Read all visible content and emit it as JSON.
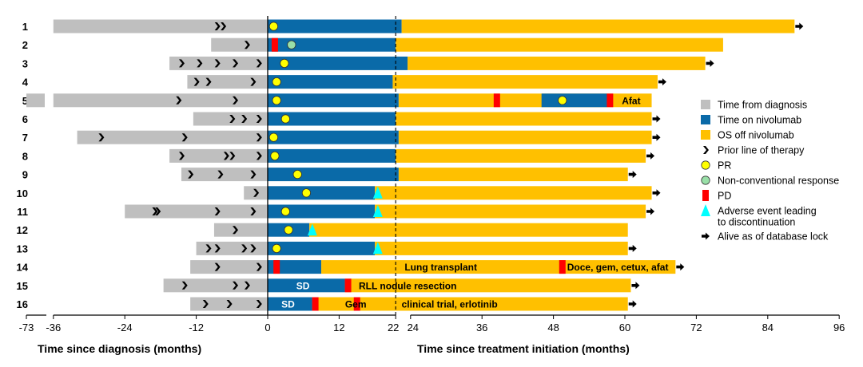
{
  "chart_data": {
    "type": "swimmer",
    "title": "",
    "xlabel_left": "Time since diagnosis (months)",
    "xlabel_right": "Time since treatment initiation (months)",
    "left_ticks": [
      "-73",
      "-36",
      "-24",
      "-12",
      "0"
    ],
    "right_ticks": [
      "12",
      "22",
      "24",
      "36",
      "48",
      "60",
      "72",
      "84",
      "96"
    ],
    "x_range_months": [
      -36,
      96
    ],
    "x_break": "-73 to -36 axis break",
    "reference_line_month": 21.5,
    "colors": {
      "diagnosis": "#bfbfbf",
      "nivolumab": "#0a6aa8",
      "os_off": "#ffc000",
      "pd": "#ff0000",
      "pr": "#ffff00",
      "nonconv": "#99e0a8",
      "ae": "#00ffff",
      "alive": "#000000"
    },
    "patients": [
      {
        "id": "1",
        "diag_start": -36,
        "broken": false,
        "prior_lines": [
          -8.5,
          -7.5
        ],
        "niv_end": 22.5,
        "os_end": 88.5,
        "alive": true,
        "pr": [
          1
        ],
        "nc": [],
        "pd": [],
        "ae": [],
        "labels": []
      },
      {
        "id": "2",
        "diag_start": -9.5,
        "broken": false,
        "prior_lines": [
          -3.5
        ],
        "niv_end": 21.5,
        "os_end": 76.5,
        "alive": false,
        "pr": [],
        "nc": [
          4
        ],
        "pd": [
          1.2
        ],
        "ae": [],
        "labels": []
      },
      {
        "id": "3",
        "diag_start": -16.5,
        "broken": false,
        "prior_lines": [
          -14.5,
          -11.5,
          -8.5,
          -5.5,
          -1.5
        ],
        "niv_end": 23.5,
        "os_end": 73.5,
        "alive": true,
        "pr": [
          2.8
        ],
        "nc": [],
        "pd": [],
        "ae": [],
        "labels": []
      },
      {
        "id": "4",
        "diag_start": -13.5,
        "broken": false,
        "prior_lines": [
          -12,
          -10,
          -2.5
        ],
        "niv_end": 21,
        "os_end": 65.5,
        "alive": true,
        "pr": [
          1.5
        ],
        "nc": [],
        "pd": [],
        "ae": [],
        "labels": []
      },
      {
        "id": "5",
        "diag_start": -36,
        "broken": true,
        "prior_lines": [
          -15,
          -5.5
        ],
        "niv_end": 22,
        "os_end": 64.5,
        "alive": false,
        "pr": [
          1.5,
          49.5
        ],
        "nc": [],
        "pd": [
          38.5,
          57.5
        ],
        "ae": [],
        "blue_segments": [
          [
            46,
            57
          ]
        ],
        "labels": [
          {
            "text": "Afat",
            "x": 59.5,
            "color": "dark"
          }
        ]
      },
      {
        "id": "6",
        "diag_start": -12.5,
        "broken": false,
        "prior_lines": [
          -6,
          -4,
          -1.5
        ],
        "niv_end": 21.5,
        "os_end": 64.5,
        "alive": true,
        "pr": [
          3
        ],
        "nc": [],
        "pd": [],
        "ae": [],
        "labels": []
      },
      {
        "id": "7",
        "diag_start": -32,
        "broken": false,
        "prior_lines": [
          -28,
          -14,
          -1.5
        ],
        "niv_end": 22,
        "os_end": 64.5,
        "alive": true,
        "pr": [
          1
        ],
        "nc": [],
        "pd": [],
        "ae": [],
        "labels": []
      },
      {
        "id": "8",
        "diag_start": -16.5,
        "broken": false,
        "prior_lines": [
          -14.5,
          -7,
          -6,
          -1.5
        ],
        "niv_end": 21.5,
        "os_end": 63.5,
        "alive": true,
        "pr": [
          1.2
        ],
        "nc": [],
        "pd": [],
        "ae": [],
        "labels": []
      },
      {
        "id": "9",
        "diag_start": -14.5,
        "broken": false,
        "prior_lines": [
          -13,
          -8,
          -2.5
        ],
        "niv_end": 22,
        "os_end": 60.5,
        "alive": true,
        "pr": [
          5
        ],
        "nc": [],
        "pd": [],
        "ae": [],
        "labels": []
      },
      {
        "id": "10",
        "diag_start": -4,
        "broken": false,
        "prior_lines": [
          -2
        ],
        "niv_end": 18,
        "os_end": 64.5,
        "alive": true,
        "pr": [
          6.5
        ],
        "nc": [],
        "pd": [],
        "ae": [
          18.5
        ],
        "labels": []
      },
      {
        "id": "11",
        "diag_start": -24,
        "broken": false,
        "prior_lines": [
          -19,
          -18.5,
          -8.5,
          -2.5
        ],
        "niv_end": 18,
        "os_end": 63.5,
        "alive": true,
        "pr": [
          3
        ],
        "nc": [],
        "pd": [],
        "ae": [
          18.5
        ],
        "labels": []
      },
      {
        "id": "12",
        "diag_start": -9,
        "broken": false,
        "prior_lines": [
          -5.5
        ],
        "niv_end": 7,
        "os_end": 60.5,
        "alive": false,
        "pr": [
          3.5
        ],
        "nc": [],
        "pd": [],
        "ae": [
          7.5
        ],
        "labels": []
      },
      {
        "id": "13",
        "diag_start": -12,
        "broken": false,
        "prior_lines": [
          -10,
          -8.5,
          -4,
          -2.5
        ],
        "niv_end": 18,
        "os_end": 60.5,
        "alive": true,
        "pr": [
          1.5
        ],
        "nc": [],
        "pd": [],
        "ae": [
          18.5
        ],
        "labels": []
      },
      {
        "id": "14",
        "diag_start": -13,
        "broken": false,
        "prior_lines": [
          -8.5,
          -1.5
        ],
        "niv_end": 9,
        "os_end": 68.5,
        "alive": true,
        "pr": [],
        "nc": [],
        "pd": [
          1.5,
          49.5
        ],
        "ae": [],
        "labels": [
          {
            "text": "Lung transplant",
            "x": 23,
            "color": "dark"
          },
          {
            "text": "Doce, gem, cetux, afat",
            "x": 50.3,
            "color": "dark"
          }
        ]
      },
      {
        "id": "15",
        "diag_start": -17.5,
        "broken": false,
        "prior_lines": [
          -14,
          -5.5,
          -3.5
        ],
        "niv_end": 13,
        "os_end": 61,
        "alive": true,
        "pr": [],
        "nc": [],
        "pd": [
          13.5
        ],
        "ae": [],
        "labels": [
          {
            "text": "SD",
            "x": 4.8,
            "color": "light"
          },
          {
            "text": "RLL nodule resection",
            "x": 15.3,
            "color": "dark"
          }
        ]
      },
      {
        "id": "16",
        "diag_start": -13,
        "broken": false,
        "prior_lines": [
          -10.5,
          -6.5,
          -1.5
        ],
        "niv_end": 7.5,
        "os_end": 60.5,
        "alive": true,
        "pr": [],
        "nc": [],
        "pd": [
          8,
          15
        ],
        "ae": [],
        "labels": [
          {
            "text": "SD",
            "x": 2.3,
            "color": "light"
          },
          {
            "text": "Gem",
            "x": 13,
            "color": "dark"
          },
          {
            "text": "clinical trial, erlotinib",
            "x": 22.5,
            "color": "dark"
          }
        ]
      }
    ],
    "legend": [
      {
        "label": "Time from diagnosis",
        "symbol": "square",
        "color": "#bfbfbf"
      },
      {
        "label": "Time on nivolumab",
        "symbol": "square",
        "color": "#0a6aa8"
      },
      {
        "label": "OS off nivolumab",
        "symbol": "square",
        "color": "#ffc000"
      },
      {
        "label": "Prior line of therapy",
        "symbol": "chevron",
        "color": "#000000"
      },
      {
        "label": "PR",
        "symbol": "circle",
        "color": "#ffff00"
      },
      {
        "label": "Non-conventional response",
        "symbol": "circle",
        "color": "#99e0a8"
      },
      {
        "label": "PD",
        "symbol": "rect",
        "color": "#ff0000"
      },
      {
        "label": "Adverse event leading\nto discontinuation",
        "symbol": "triangle",
        "color": "#00ffff"
      },
      {
        "label": "Alive as of database lock",
        "symbol": "arrow",
        "color": "#000000"
      }
    ]
  }
}
